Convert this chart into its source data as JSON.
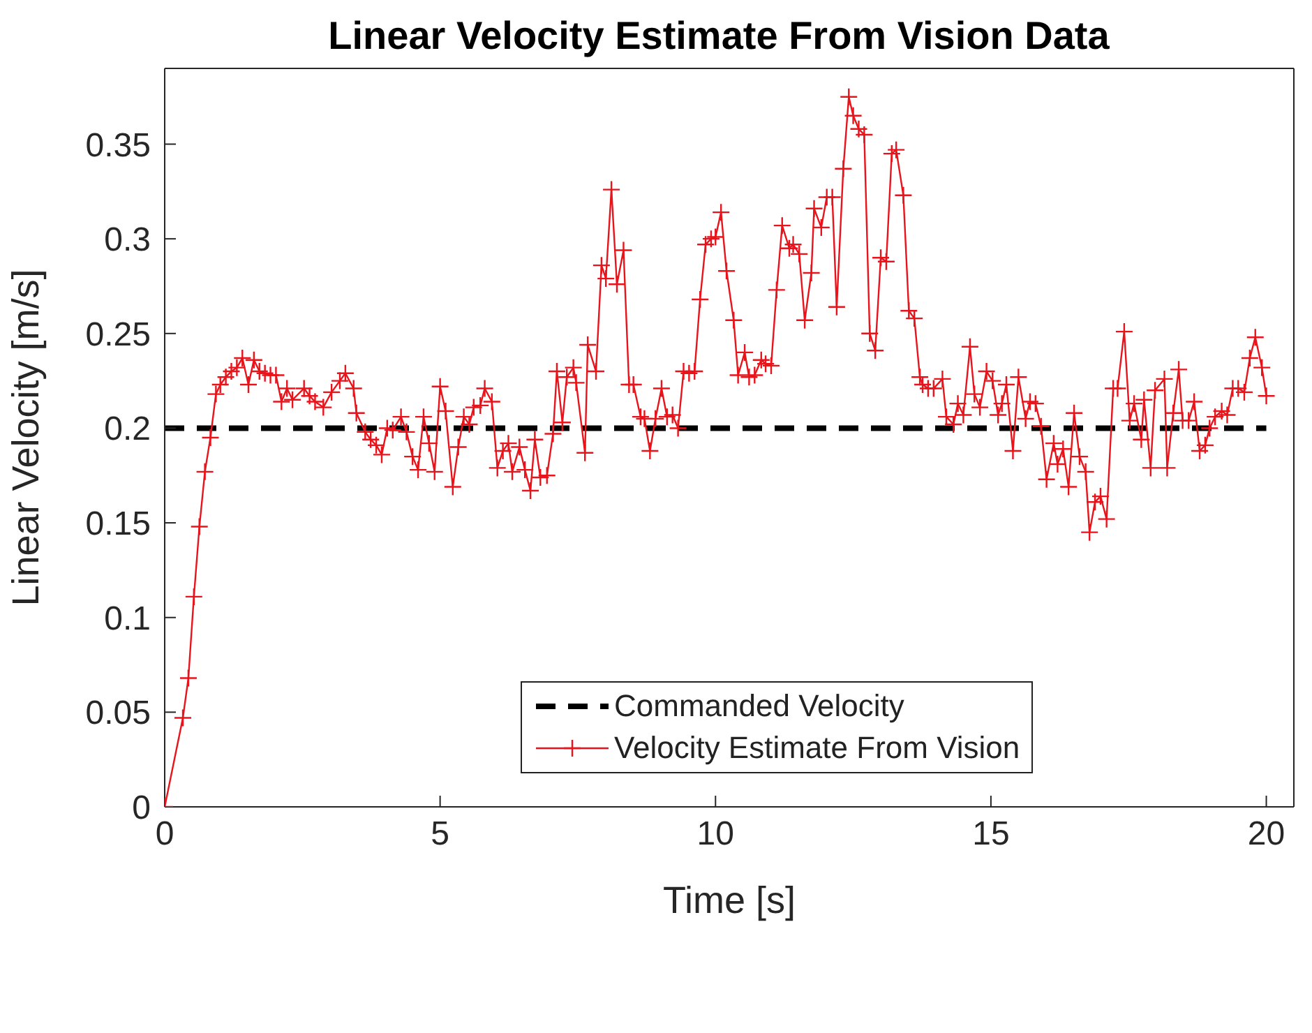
{
  "chart_data": {
    "type": "line",
    "title": "Linear Velocity Estimate From Vision Data",
    "xlabel": "Time [s]",
    "ylabel": "Linear Velocity [m/s]",
    "xlim": [
      0,
      20.5
    ],
    "xticks": [
      0,
      5,
      10,
      15,
      20
    ],
    "ylim": [
      0,
      0.39
    ],
    "yticks": [
      0,
      0.05,
      0.1,
      0.15,
      0.2,
      0.25,
      0.3,
      0.35
    ],
    "legend": "bottom",
    "series": [
      {
        "name": "Commanded Velocity",
        "color": "#000000",
        "line_style": "dashed",
        "marker": "none",
        "x": [
          0,
          20
        ],
        "values": [
          0.2,
          0.2
        ]
      },
      {
        "name": "Velocity Estimate From Vision",
        "color": "#e8141b",
        "line_style": "solid",
        "marker": "cross",
        "x": [
          0,
          0.33,
          0.43,
          0.53,
          0.63,
          0.73,
          0.83,
          0.93,
          1.01,
          1.11,
          1.21,
          1.31,
          1.41,
          1.52,
          1.62,
          1.72,
          1.82,
          1.92,
          2.02,
          2.12,
          2.22,
          2.32,
          2.53,
          2.63,
          2.73,
          2.88,
          3.03,
          3.18,
          3.28,
          3.43,
          3.48,
          3.64,
          3.74,
          3.84,
          3.94,
          4.04,
          4.14,
          4.29,
          4.39,
          4.5,
          4.6,
          4.7,
          4.8,
          4.9,
          5.0,
          5.1,
          5.23,
          5.33,
          5.43,
          5.53,
          5.61,
          5.73,
          5.81,
          5.94,
          6.04,
          6.14,
          6.24,
          6.31,
          6.44,
          6.54,
          6.64,
          6.72,
          6.82,
          6.94,
          7.05,
          7.12,
          7.22,
          7.3,
          7.42,
          7.47,
          7.63,
          7.68,
          7.83,
          7.93,
          8.01,
          8.11,
          8.21,
          8.33,
          8.43,
          8.51,
          8.64,
          8.71,
          8.81,
          8.91,
          9.02,
          9.12,
          9.22,
          9.32,
          9.42,
          9.52,
          9.62,
          9.72,
          9.82,
          9.92,
          10.0,
          10.1,
          10.2,
          10.33,
          10.41,
          10.53,
          10.61,
          10.71,
          10.83,
          10.91,
          11.01,
          11.11,
          11.21,
          11.34,
          11.41,
          11.52,
          11.62,
          11.74,
          11.79,
          11.92,
          12.02,
          12.12,
          12.2,
          12.32,
          12.42,
          12.5,
          12.6,
          12.7,
          12.8,
          12.9,
          13.0,
          13.1,
          13.2,
          13.28,
          13.41,
          13.51,
          13.61,
          13.71,
          13.76,
          13.86,
          13.96,
          14.12,
          14.19,
          14.32,
          14.4,
          14.5,
          14.62,
          14.7,
          14.8,
          14.92,
          15.03,
          15.13,
          15.2,
          15.28,
          15.4,
          15.5,
          15.63,
          15.71,
          15.81,
          15.91,
          16.01,
          16.14,
          16.21,
          16.31,
          16.41,
          16.51,
          16.61,
          16.72,
          16.79,
          16.89,
          16.99,
          17.1,
          17.22,
          17.3,
          17.42,
          17.52,
          17.6,
          17.73,
          17.78,
          17.9,
          17.98,
          18.15,
          18.2,
          18.31,
          18.41,
          18.48,
          18.59,
          18.69,
          18.79,
          18.89,
          18.97,
          19.07,
          19.19,
          19.29,
          19.39,
          19.49,
          19.6,
          19.7,
          19.8,
          19.92,
          20.0
        ],
        "values": [
          0,
          0.047,
          0.068,
          0.111,
          0.148,
          0.177,
          0.195,
          0.218,
          0.223,
          0.227,
          0.23,
          0.232,
          0.237,
          0.223,
          0.236,
          0.23,
          0.229,
          0.228,
          0.228,
          0.214,
          0.221,
          0.215,
          0.221,
          0.217,
          0.214,
          0.211,
          0.219,
          0.225,
          0.229,
          0.221,
          0.208,
          0.198,
          0.194,
          0.191,
          0.186,
          0.2,
          0.199,
          0.206,
          0.198,
          0.185,
          0.178,
          0.206,
          0.192,
          0.177,
          0.222,
          0.209,
          0.169,
          0.19,
          0.206,
          0.202,
          0.211,
          0.212,
          0.221,
          0.214,
          0.179,
          0.188,
          0.192,
          0.177,
          0.19,
          0.178,
          0.167,
          0.194,
          0.174,
          0.175,
          0.197,
          0.23,
          0.203,
          0.227,
          0.232,
          0.224,
          0.187,
          0.244,
          0.23,
          0.286,
          0.279,
          0.326,
          0.276,
          0.294,
          0.223,
          0.223,
          0.206,
          0.205,
          0.188,
          0.205,
          0.221,
          0.206,
          0.207,
          0.2,
          0.23,
          0.229,
          0.23,
          0.268,
          0.297,
          0.3,
          0.301,
          0.314,
          0.283,
          0.257,
          0.228,
          0.24,
          0.227,
          0.228,
          0.236,
          0.234,
          0.233,
          0.273,
          0.307,
          0.295,
          0.297,
          0.292,
          0.257,
          0.282,
          0.316,
          0.306,
          0.322,
          0.322,
          0.264,
          0.337,
          0.375,
          0.365,
          0.358,
          0.355,
          0.25,
          0.241,
          0.29,
          0.288,
          0.345,
          0.347,
          0.323,
          0.262,
          0.258,
          0.227,
          0.223,
          0.221,
          0.221,
          0.226,
          0.206,
          0.202,
          0.213,
          0.207,
          0.243,
          0.218,
          0.211,
          0.23,
          0.225,
          0.207,
          0.213,
          0.223,
          0.188,
          0.227,
          0.205,
          0.214,
          0.213,
          0.201,
          0.173,
          0.192,
          0.181,
          0.189,
          0.169,
          0.208,
          0.185,
          0.177,
          0.145,
          0.161,
          0.164,
          0.152,
          0.221,
          0.221,
          0.251,
          0.204,
          0.213,
          0.194,
          0.215,
          0.179,
          0.22,
          0.226,
          0.179,
          0.208,
          0.231,
          0.204,
          0.204,
          0.214,
          0.188,
          0.191,
          0.2,
          0.206,
          0.209,
          0.207,
          0.221,
          0.221,
          0.219,
          0.237,
          0.248,
          0.232,
          0.217
        ]
      }
    ]
  }
}
